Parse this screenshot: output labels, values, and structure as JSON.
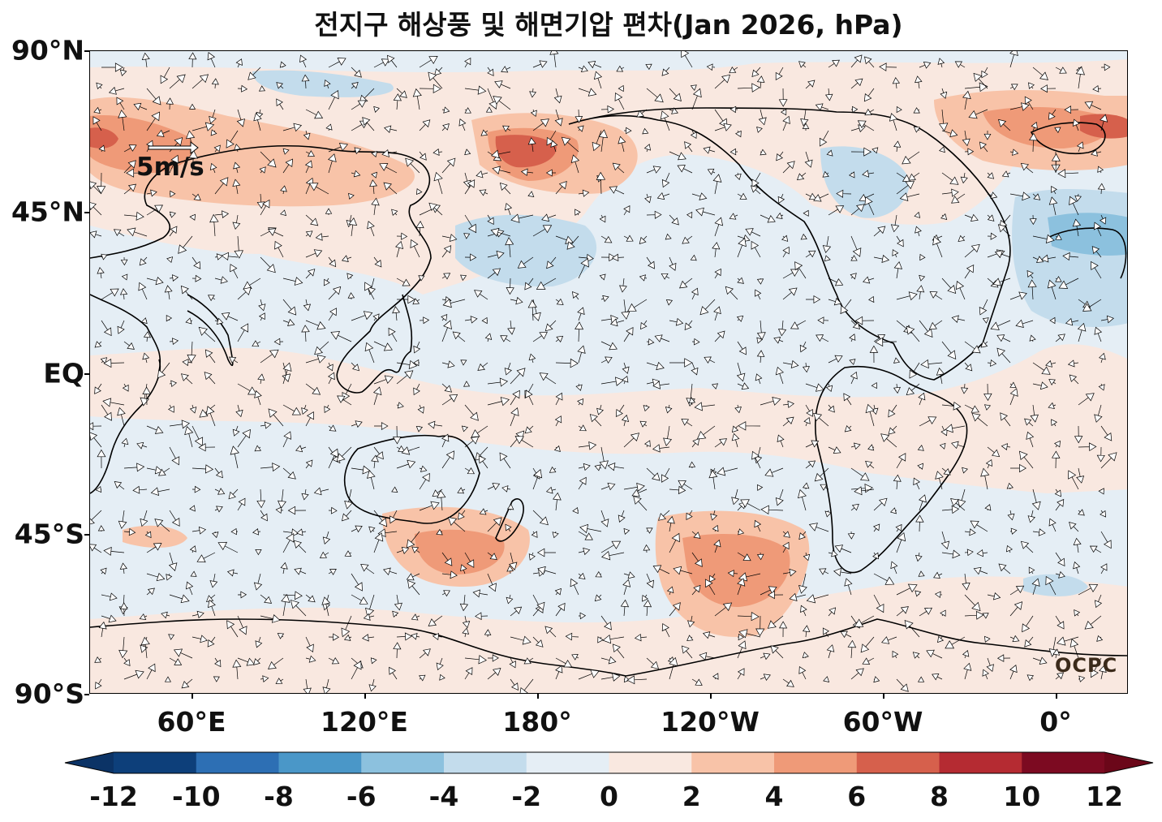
{
  "title": "전지구 해상풍 및 해면기압 편차(Jan 2026, hPa)",
  "map": {
    "variable": "Sea level pressure anomaly and surface wind anomaly",
    "projection": "equirectangular, Pacific-centered",
    "lat_labels": [
      "90°N",
      "45°N",
      "EQ",
      "45°S",
      "90°S"
    ],
    "lon_labels": [
      "60°E",
      "120°E",
      "180°",
      "120°W",
      "60°W",
      "0°"
    ],
    "reference_vector_label": "5m/s",
    "logo_text": "OCPC"
  },
  "colorbar": {
    "labels": [
      "-12",
      "-10",
      "-8",
      "-6",
      "-4",
      "-2",
      "0",
      "2",
      "4",
      "6",
      "8",
      "10",
      "12"
    ],
    "colors": [
      "#0d3f7a",
      "#2d6fb4",
      "#4a97c8",
      "#8cc1de",
      "#c3dcec",
      "#e5eef5",
      "#f9e8e0",
      "#f8c3a8",
      "#ef9a78",
      "#d6604c",
      "#b52b32",
      "#7c0a21"
    ],
    "extend_low_color": "#0b3366",
    "extend_high_color": "#6b0719"
  }
}
